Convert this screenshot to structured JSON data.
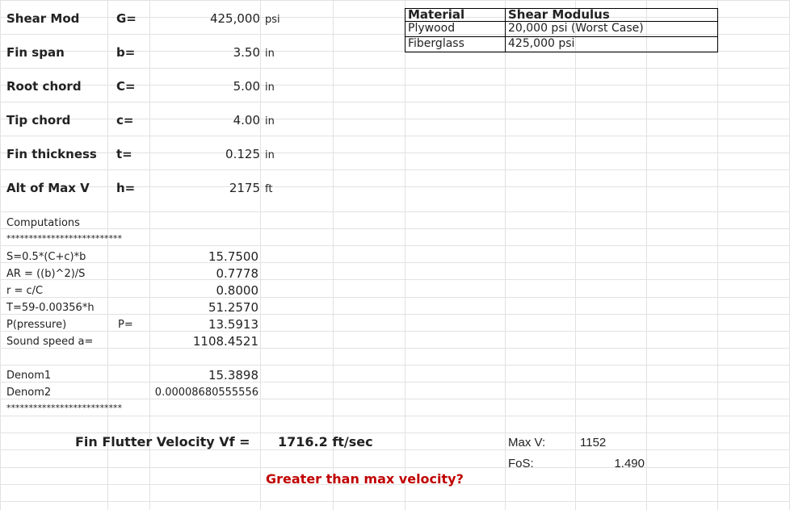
{
  "inputs": [
    {
      "label": "Shear Mod",
      "symbol": "G=",
      "value": "425,000",
      "unit": "psi"
    },
    {
      "label": "Fin span",
      "symbol": "b=",
      "value": "3.50",
      "unit": "in"
    },
    {
      "label": "Root chord",
      "symbol": "C=",
      "value": "5.00",
      "unit": "in"
    },
    {
      "label": "Tip chord",
      "symbol": "c=",
      "value": "4.00",
      "unit": "in"
    },
    {
      "label": "Fin thickness",
      "symbol": "t=",
      "value": "0.125",
      "unit": "in"
    },
    {
      "label": "Alt of Max V",
      "symbol": "h=",
      "value": "2175",
      "unit": "ft"
    }
  ],
  "materials": {
    "header_material": "Material",
    "header_modulus": "Shear Modulus",
    "rows": [
      {
        "material": "Plywood",
        "modulus": "20,000 psi (Worst Case)"
      },
      {
        "material": "Fiberglass",
        "modulus": "425,000 psi"
      }
    ]
  },
  "computations": {
    "title": "Computations",
    "stars": "**************************",
    "rows": [
      {
        "formula": "S=0.5*(C+c)*b",
        "symbol": "",
        "value": "15.7500"
      },
      {
        "formula": "AR = ((b)^2)/S",
        "symbol": "",
        "value": "0.7778"
      },
      {
        "formula": "r = c/C",
        "symbol": "",
        "value": "0.8000"
      },
      {
        "formula": "T=59-0.00356*h",
        "symbol": "",
        "value": "51.2570"
      },
      {
        "formula": "P(pressure)",
        "symbol": "P=",
        "value": "13.5913"
      },
      {
        "formula": "Sound speed  a=",
        "symbol": "",
        "value": "1108.4521"
      }
    ],
    "denoms": [
      {
        "label": "Denom1",
        "value": "15.3898"
      },
      {
        "label": "Denom2",
        "value": "0.00008680555556"
      }
    ]
  },
  "result": {
    "label": "Fin Flutter Velocity Vf =",
    "value": "1716.2 ft/sec",
    "max_v_label": "Max V:",
    "max_v_value": "1152",
    "fos_label": "FoS:",
    "fos_value": "1.490",
    "warning": "Greater than max velocity?"
  }
}
